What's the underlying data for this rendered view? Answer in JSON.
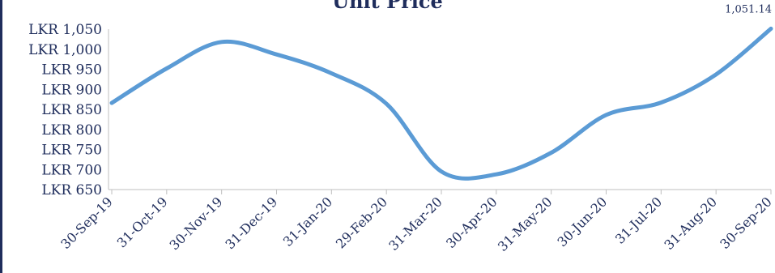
{
  "chart_data": {
    "type": "line",
    "title": "Unit Price",
    "xlabel": "",
    "ylabel": "",
    "x": [
      "30-Sep-19",
      "31-Oct-19",
      "30-Nov-19",
      "31-Dec-19",
      "31-Jan-20",
      "29-Feb-20",
      "31-Mar-20",
      "30-Apr-20",
      "31-May-20",
      "30-Jun-20",
      "31-Jul-20",
      "31-Aug-20",
      "30-Sep-20"
    ],
    "values": [
      866,
      952,
      1018,
      987,
      940,
      864,
      695,
      688,
      742,
      836,
      867,
      937,
      1051.14
    ],
    "y_tick_labels": [
      "LKR 650",
      "LKR 700",
      "LKR 750",
      "LKR 800",
      "LKR 850",
      "LKR 900",
      "LKR 950",
      "LKR 1,000",
      "LKR 1,050"
    ],
    "ylim": [
      650,
      1050
    ],
    "line_color": "#5b9bd5",
    "grid": false,
    "end_label": "1,051.14"
  }
}
